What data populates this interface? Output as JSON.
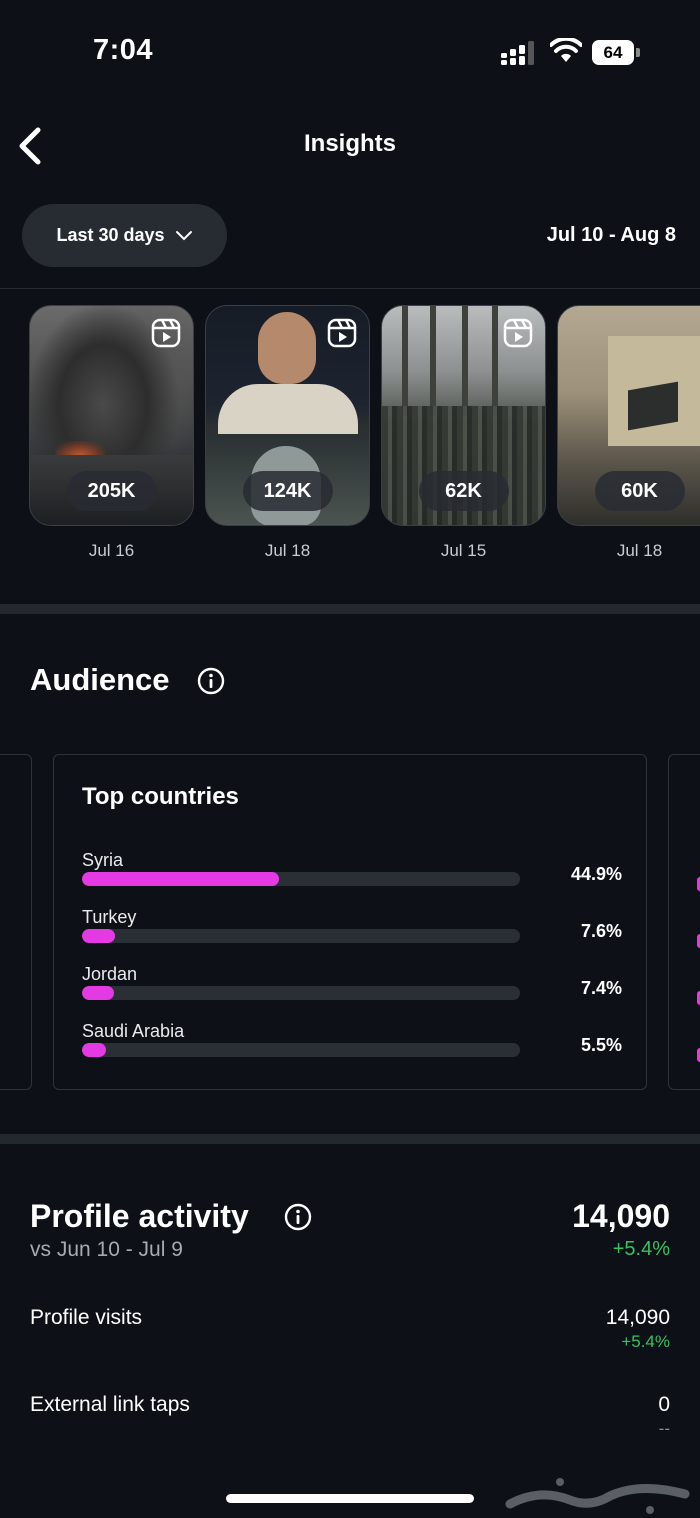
{
  "status_bar": {
    "time": "7:04",
    "battery": "64"
  },
  "header": {
    "title": "Insights"
  },
  "filters": {
    "range_label": "Last 30 days",
    "date_range": "Jul 10 - Aug 8"
  },
  "reels": [
    {
      "views": "205K",
      "date": "Jul 16"
    },
    {
      "views": "124K",
      "date": "Jul 18"
    },
    {
      "views": "62K",
      "date": "Jul 15"
    },
    {
      "views": "60K",
      "date": "Jul 18"
    }
  ],
  "audience": {
    "title": "Audience",
    "top_countries": {
      "title": "Top countries",
      "items": [
        {
          "name": "Syria",
          "percent": "44.9%",
          "value": 44.9
        },
        {
          "name": "Turkey",
          "percent": "7.6%",
          "value": 7.6
        },
        {
          "name": "Jordan",
          "percent": "7.4%",
          "value": 7.4
        },
        {
          "name": "Saudi Arabia",
          "percent": "5.5%",
          "value": 5.5
        }
      ]
    }
  },
  "profile_activity": {
    "title": "Profile activity",
    "comparison": "vs Jun 10 - Jul 9",
    "total": "14,090",
    "change": "+5.4%",
    "rows": [
      {
        "label": "Profile visits",
        "value": "14,090",
        "change": "+5.4%"
      },
      {
        "label": "External link taps",
        "value": "0",
        "change": "--"
      }
    ]
  },
  "colors": {
    "accent_bar": "#e33ae3",
    "positive": "#37c162",
    "background": "#0d1117"
  }
}
